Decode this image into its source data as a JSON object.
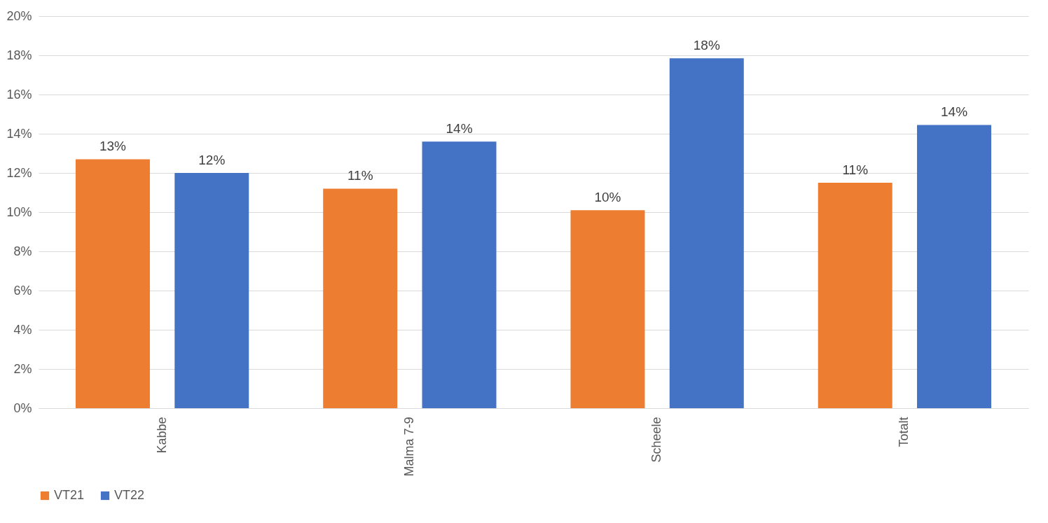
{
  "chart_data": {
    "type": "bar",
    "categories": [
      "Kabbe",
      "Malma 7-9",
      "Scheele",
      "Totalt"
    ],
    "series": [
      {
        "name": "VT21",
        "color": "#ed7d31",
        "values": [
          12.7,
          11.2,
          10.1,
          11.5
        ],
        "value_labels": [
          "13%",
          "11%",
          "10%",
          "11%"
        ]
      },
      {
        "name": "VT22",
        "color": "#4472c4",
        "values": [
          12.0,
          13.6,
          17.85,
          14.45
        ],
        "value_labels": [
          "12%",
          "14%",
          "18%",
          "14%"
        ]
      }
    ],
    "ylim": [
      0,
      20
    ],
    "yticks": [
      {
        "value": 0,
        "label": "0%"
      },
      {
        "value": 2,
        "label": "2%"
      },
      {
        "value": 4,
        "label": "4%"
      },
      {
        "value": 6,
        "label": "6%"
      },
      {
        "value": 8,
        "label": "8%"
      },
      {
        "value": 10,
        "label": "10%"
      },
      {
        "value": 12,
        "label": "12%"
      },
      {
        "value": 14,
        "label": "14%"
      },
      {
        "value": 16,
        "label": "16%"
      },
      {
        "value": 18,
        "label": "18%"
      },
      {
        "value": 20,
        "label": "20%"
      }
    ],
    "grid": "y",
    "legend": "bottom"
  }
}
